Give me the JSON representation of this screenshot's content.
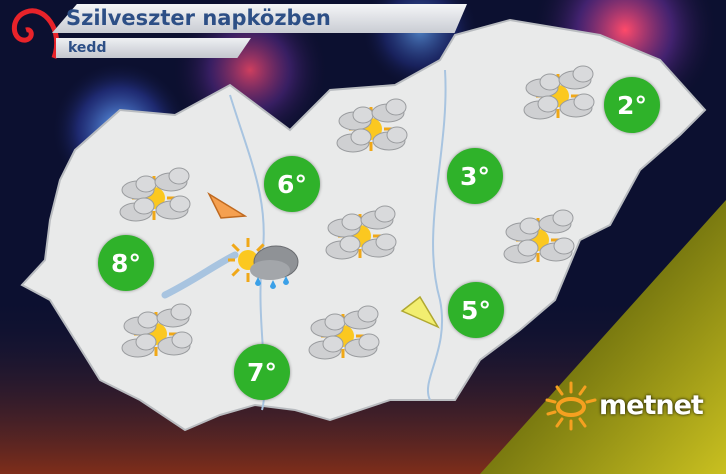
{
  "header": {
    "title": "Szilveszter napközben",
    "subtitle": "kedd"
  },
  "logo": {
    "text": "metnet"
  },
  "colors": {
    "temp_badge": "#2fb22a",
    "title_text": "#2d4f86",
    "map_fill": "#e9eaea"
  },
  "temperatures": [
    {
      "label": "2°",
      "value": 2
    },
    {
      "label": "3°",
      "value": 3
    },
    {
      "label": "6°",
      "value": 6
    },
    {
      "label": "8°",
      "value": 8
    },
    {
      "label": "5°",
      "value": 5
    },
    {
      "label": "7°",
      "value": 7
    }
  ],
  "weather_icons": [
    "partly-cloudy-icon",
    "partly-cloudy-icon",
    "partly-cloudy-icon",
    "partly-cloudy-icon",
    "partly-cloudy-icon",
    "partly-cloudy-icon",
    "partly-cloudy-icon",
    "sun-cloud-rain-icon"
  ],
  "wind_arrows": [
    {
      "color": "#f5a050",
      "direction": "south-east"
    },
    {
      "color": "#f2ee70",
      "direction": "north-west"
    }
  ]
}
